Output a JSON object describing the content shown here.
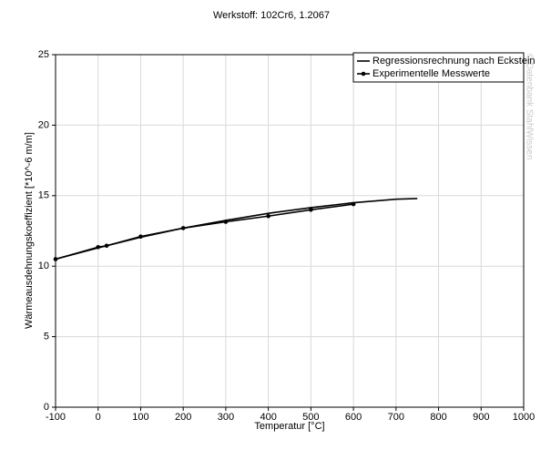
{
  "chart_data": {
    "type": "line",
    "title": "Werkstoff: 102Cr6, 1.2067",
    "x_label": "Temperatur [°C]",
    "y_label": "Wärmeausdehnungskoeffizient [*10^-6 m/m]",
    "watermark": "© Datenbank StahlWissen",
    "series": [
      {
        "name": "Regressionsrechnung nach Eckstein",
        "color": "#000000",
        "marker": null,
        "x": [
          -100,
          0,
          100,
          200,
          300,
          400,
          500,
          600,
          700,
          750
        ],
        "values": [
          10.5,
          11.3,
          12.05,
          12.7,
          13.25,
          13.75,
          14.15,
          14.5,
          14.75,
          14.8
        ]
      },
      {
        "name": "Experimentelle Messwerte",
        "color": "#000000",
        "marker": "circle",
        "x": [
          -100,
          0,
          20,
          100,
          200,
          300,
          400,
          500,
          600
        ],
        "values": [
          10.5,
          11.35,
          11.45,
          12.1,
          12.7,
          13.15,
          13.55,
          14.0,
          14.4
        ]
      }
    ],
    "xlim": [
      -100,
      1000
    ],
    "xticks": [
      -100,
      0,
      100,
      200,
      300,
      400,
      500,
      600,
      700,
      800,
      900,
      1000
    ],
    "ylim": [
      0,
      25
    ],
    "yticks": [
      0,
      5,
      10,
      15,
      20,
      25
    ],
    "grid": true,
    "legend": "upper right"
  }
}
